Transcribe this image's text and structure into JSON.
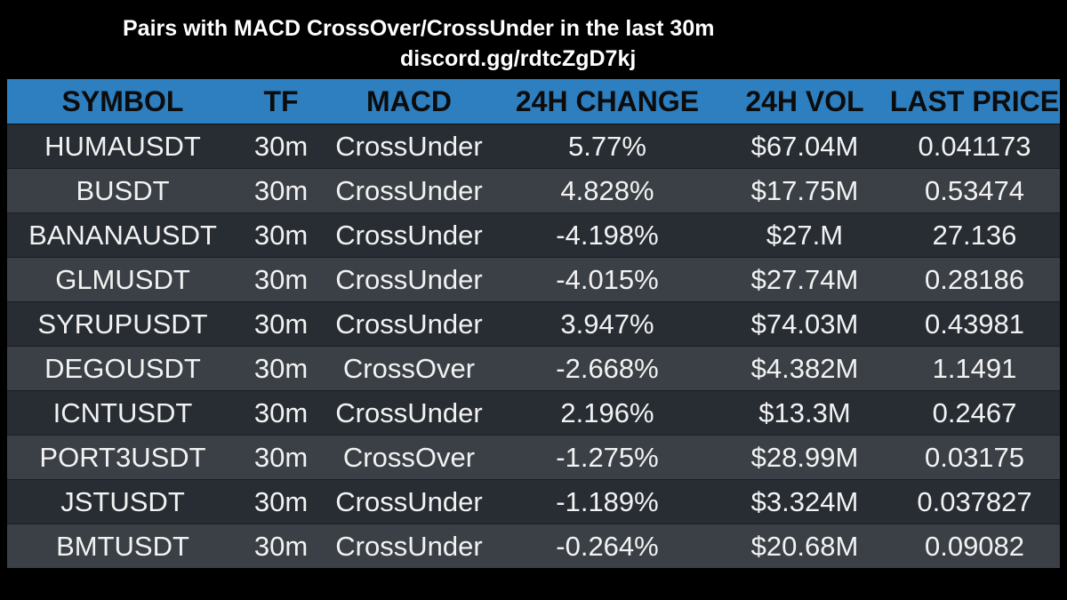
{
  "header": {
    "title": "Pairs with MACD CrossOver/CrossUnder in the last 30m",
    "subtitle": "discord.gg/rdtcZgD7kj"
  },
  "table": {
    "columns": [
      "SYMBOL",
      "TF",
      "MACD",
      "24H CHANGE",
      "24H VOL",
      "LAST PRICE"
    ],
    "rows": [
      {
        "symbol": "HUMAUSDT",
        "tf": "30m",
        "macd": "CrossUnder",
        "change": "5.77%",
        "vol": "$67.04M",
        "price": "0.041173"
      },
      {
        "symbol": "BUSDT",
        "tf": "30m",
        "macd": "CrossUnder",
        "change": "4.828%",
        "vol": "$17.75M",
        "price": "0.53474"
      },
      {
        "symbol": "BANANAUSDT",
        "tf": "30m",
        "macd": "CrossUnder",
        "change": "-4.198%",
        "vol": "$27.M",
        "price": "27.136"
      },
      {
        "symbol": "GLMUSDT",
        "tf": "30m",
        "macd": "CrossUnder",
        "change": "-4.015%",
        "vol": "$27.74M",
        "price": "0.28186"
      },
      {
        "symbol": "SYRUPUSDT",
        "tf": "30m",
        "macd": "CrossUnder",
        "change": "3.947%",
        "vol": "$74.03M",
        "price": "0.43981"
      },
      {
        "symbol": "DEGOUSDT",
        "tf": "30m",
        "macd": "CrossOver",
        "change": "-2.668%",
        "vol": "$4.382M",
        "price": "1.1491"
      },
      {
        "symbol": "ICNTUSDT",
        "tf": "30m",
        "macd": "CrossUnder",
        "change": "2.196%",
        "vol": "$13.3M",
        "price": "0.2467"
      },
      {
        "symbol": "PORT3USDT",
        "tf": "30m",
        "macd": "CrossOver",
        "change": "-1.275%",
        "vol": "$28.99M",
        "price": "0.03175"
      },
      {
        "symbol": "JSTUSDT",
        "tf": "30m",
        "macd": "CrossUnder",
        "change": "-1.189%",
        "vol": "$3.324M",
        "price": "0.037827"
      },
      {
        "symbol": "BMTUSDT",
        "tf": "30m",
        "macd": "CrossUnder",
        "change": "-0.264%",
        "vol": "$20.68M",
        "price": "0.09082"
      }
    ]
  },
  "colors": {
    "background": "#000000",
    "header_bg": "#2e7fc0",
    "row_dark": "#272d33",
    "row_light": "#3b4046",
    "text": "#f2f2f2"
  }
}
